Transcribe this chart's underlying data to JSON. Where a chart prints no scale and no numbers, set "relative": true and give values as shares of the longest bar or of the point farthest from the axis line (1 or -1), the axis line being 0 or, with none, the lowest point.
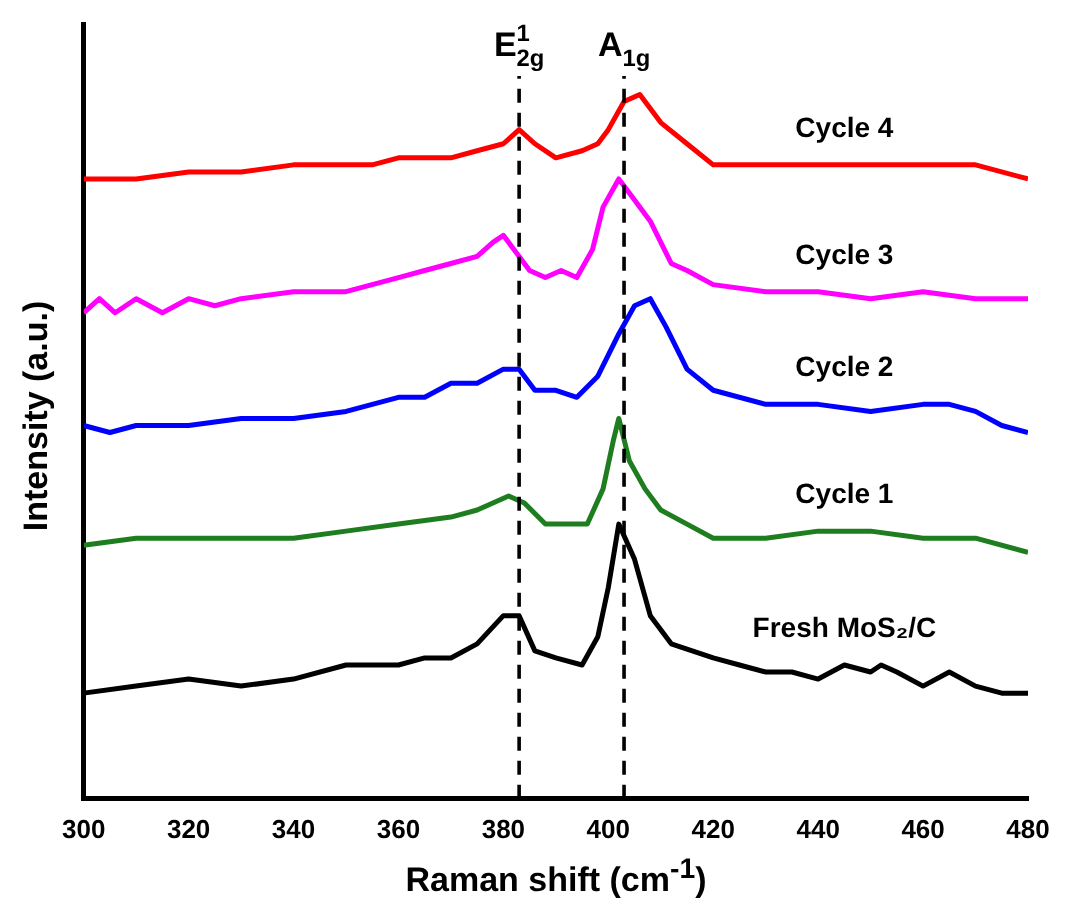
{
  "chart_data": {
    "type": "line",
    "relative": true,
    "xlabel": "Raman shift (cm$^{-1}$)",
    "ylabel": "Intensity (a.u.)",
    "xlim": [
      300,
      480
    ],
    "xticks": [
      300,
      320,
      340,
      360,
      380,
      400,
      420,
      440,
      460,
      480
    ],
    "grid": false,
    "legend": false,
    "marker": "none",
    "line_style": "solid",
    "ref_lines": [
      {
        "axis": "x",
        "value": 383,
        "label": "E$^{1}$$_{2g}$",
        "color": "#000000",
        "line_style": "dashed"
      },
      {
        "axis": "x",
        "value": 403,
        "label": "A$_{1g}$",
        "color": "#000000",
        "line_style": "dashed"
      }
    ],
    "series": [
      {
        "name": "Fresh MoS₂/C",
        "color": "#000000",
        "x": [
          300,
          310,
          320,
          330,
          340,
          350,
          360,
          365,
          370,
          375,
          380,
          383,
          386,
          390,
          395,
          398,
          400,
          402,
          405,
          408,
          412,
          416,
          420,
          425,
          430,
          435,
          440,
          445,
          450,
          452,
          455,
          460,
          465,
          470,
          475,
          480
        ],
        "values": [
          0.15,
          0.16,
          0.17,
          0.16,
          0.17,
          0.19,
          0.19,
          0.2,
          0.2,
          0.22,
          0.26,
          0.26,
          0.21,
          0.2,
          0.19,
          0.23,
          0.3,
          0.39,
          0.34,
          0.26,
          0.22,
          0.21,
          0.2,
          0.19,
          0.18,
          0.18,
          0.17,
          0.19,
          0.18,
          0.19,
          0.18,
          0.16,
          0.18,
          0.16,
          0.15,
          0.15
        ]
      },
      {
        "name": "Cycle 1",
        "color": "#1e7d1e",
        "x": [
          300,
          310,
          320,
          330,
          340,
          350,
          360,
          370,
          375,
          378,
          381,
          384,
          388,
          392,
          396,
          399,
          401,
          402,
          404,
          407,
          410,
          415,
          420,
          430,
          440,
          450,
          460,
          470,
          480
        ],
        "values": [
          0.36,
          0.37,
          0.37,
          0.37,
          0.37,
          0.38,
          0.39,
          0.4,
          0.41,
          0.42,
          0.43,
          0.42,
          0.39,
          0.39,
          0.39,
          0.44,
          0.51,
          0.54,
          0.48,
          0.44,
          0.41,
          0.39,
          0.37,
          0.37,
          0.38,
          0.38,
          0.37,
          0.37,
          0.35
        ]
      },
      {
        "name": "Cycle 2",
        "color": "#0000ff",
        "x": [
          300,
          305,
          310,
          320,
          330,
          340,
          350,
          360,
          365,
          370,
          375,
          380,
          383,
          386,
          390,
          394,
          398,
          402,
          405,
          408,
          411,
          415,
          420,
          430,
          440,
          450,
          460,
          465,
          470,
          475,
          480
        ],
        "values": [
          0.53,
          0.52,
          0.53,
          0.53,
          0.54,
          0.54,
          0.55,
          0.57,
          0.57,
          0.59,
          0.59,
          0.61,
          0.61,
          0.58,
          0.58,
          0.57,
          0.6,
          0.66,
          0.7,
          0.71,
          0.67,
          0.61,
          0.58,
          0.56,
          0.56,
          0.55,
          0.56,
          0.56,
          0.55,
          0.53,
          0.52
        ]
      },
      {
        "name": "Cycle 3",
        "color": "#ff00ff",
        "x": [
          300,
          303,
          306,
          310,
          315,
          320,
          325,
          330,
          340,
          345,
          350,
          355,
          360,
          365,
          370,
          375,
          378,
          380,
          382,
          385,
          388,
          391,
          394,
          397,
          399,
          402,
          405,
          408,
          412,
          415,
          420,
          430,
          440,
          450,
          460,
          470,
          480
        ],
        "values": [
          0.69,
          0.71,
          0.69,
          0.71,
          0.69,
          0.71,
          0.7,
          0.71,
          0.72,
          0.72,
          0.72,
          0.73,
          0.74,
          0.75,
          0.76,
          0.77,
          0.79,
          0.8,
          0.78,
          0.75,
          0.74,
          0.75,
          0.74,
          0.78,
          0.84,
          0.88,
          0.85,
          0.82,
          0.76,
          0.75,
          0.73,
          0.72,
          0.72,
          0.71,
          0.72,
          0.71,
          0.71
        ]
      },
      {
        "name": "Cycle 4",
        "color": "#ff0000",
        "x": [
          300,
          310,
          320,
          330,
          340,
          350,
          355,
          360,
          370,
          375,
          380,
          383,
          386,
          390,
          395,
          398,
          400,
          403,
          406,
          410,
          415,
          420,
          430,
          440,
          450,
          460,
          470,
          480
        ],
        "values": [
          0.88,
          0.88,
          0.89,
          0.89,
          0.9,
          0.9,
          0.9,
          0.91,
          0.91,
          0.92,
          0.93,
          0.95,
          0.93,
          0.91,
          0.92,
          0.93,
          0.95,
          0.99,
          1,
          0.96,
          0.93,
          0.9,
          0.9,
          0.9,
          0.9,
          0.9,
          0.9,
          0.88
        ]
      }
    ]
  }
}
